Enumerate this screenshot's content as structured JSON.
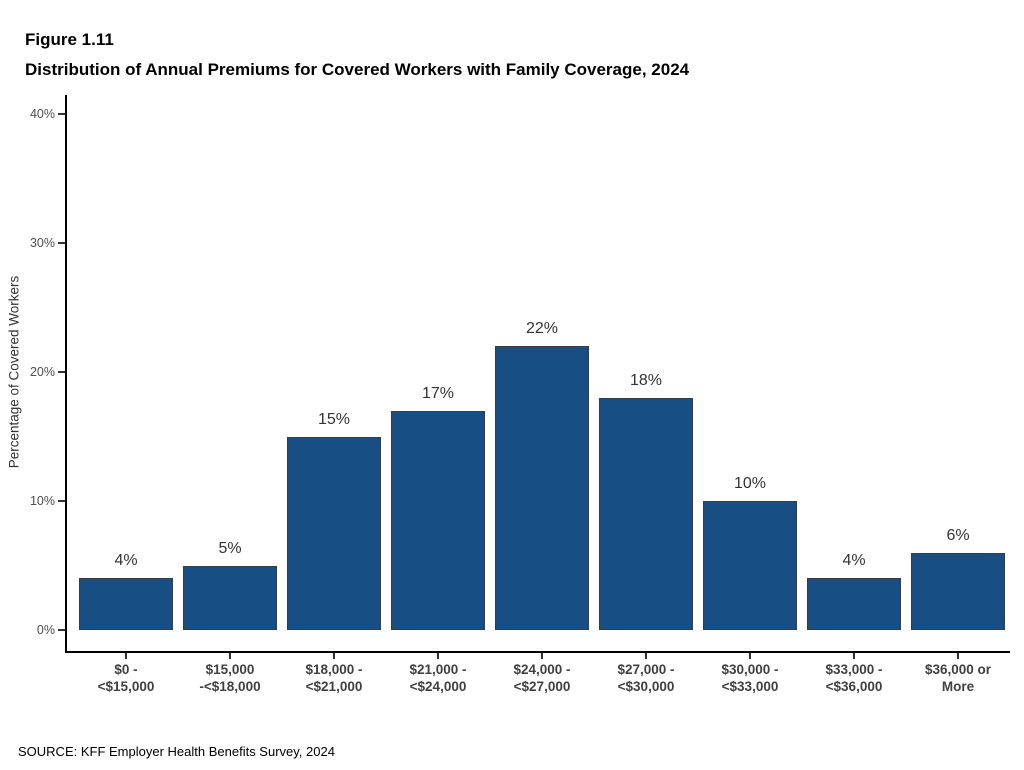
{
  "figure": {
    "number": "Figure 1.11",
    "title": "Distribution of Annual Premiums for Covered Workers with Family Coverage, 2024"
  },
  "source": "SOURCE: KFF Employer Health Benefits Survey, 2024",
  "chart_data": {
    "type": "bar",
    "title": "Distribution of Annual Premiums for Covered Workers with Family Coverage, 2024",
    "categories": [
      "$0 -\n<$15,000",
      "$15,000\n-<$18,000",
      "$18,000 -\n<$21,000",
      "$21,000 -\n<$24,000",
      "$24,000 -\n<$27,000",
      "$27,000 -\n<$30,000",
      "$30,000 -\n<$33,000",
      "$33,000 -\n<$36,000",
      "$36,000 or\nMore"
    ],
    "values": [
      4,
      5,
      15,
      17,
      22,
      18,
      10,
      4,
      6
    ],
    "bar_labels": [
      "4%",
      "5%",
      "15%",
      "17%",
      "22%",
      "18%",
      "10%",
      "4%",
      "6%"
    ],
    "xlabel": "",
    "ylabel": "Percentage of Covered Workers",
    "ylim": [
      0,
      40
    ],
    "yticks": [
      0,
      10,
      20,
      30,
      40
    ],
    "ytick_labels": [
      "0%",
      "10%",
      "20%",
      "30%",
      "40%"
    ],
    "grid": false,
    "legend": null,
    "bar_color": "#174e84",
    "bar_border_color": "#3c3c3c",
    "axis_color": "#000000"
  }
}
